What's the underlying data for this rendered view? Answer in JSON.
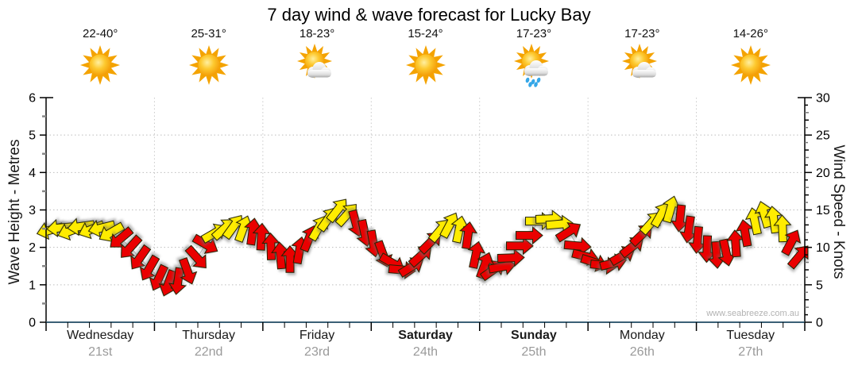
{
  "title": "7 day wind & wave forecast for Lucky Bay",
  "watermark": "www.seabreeze.com.au",
  "left_axis": {
    "label": "Wave Height - Metres",
    "ticks": [
      0,
      1,
      2,
      3,
      4,
      5,
      6
    ],
    "range": [
      0,
      6
    ]
  },
  "right_axis": {
    "label": "Wind Speed - Knots",
    "ticks": [
      0,
      5,
      10,
      15,
      20,
      25,
      30
    ],
    "range": [
      0,
      30
    ]
  },
  "days": [
    {
      "name": "Wednesday",
      "date": "21st",
      "temp": "22-40°",
      "icon": "sunny",
      "bold": false
    },
    {
      "name": "Thursday",
      "date": "22nd",
      "temp": "25-31°",
      "icon": "sunny",
      "bold": false
    },
    {
      "name": "Friday",
      "date": "23rd",
      "temp": "18-23°",
      "icon": "partly-cloudy",
      "bold": false
    },
    {
      "name": "Saturday",
      "date": "24th",
      "temp": "15-24°",
      "icon": "sunny",
      "bold": true
    },
    {
      "name": "Sunday",
      "date": "25th",
      "temp": "17-23°",
      "icon": "showers",
      "bold": true
    },
    {
      "name": "Monday",
      "date": "26th",
      "temp": "17-23°",
      "icon": "partly-cloudy",
      "bold": false
    },
    {
      "name": "Tuesday",
      "date": "27th",
      "temp": "14-26°",
      "icon": "sunny",
      "bold": false
    }
  ],
  "chart_data": {
    "type": "wind-arrow-time-series",
    "title": "7 day wind & wave forecast for Lucky Bay",
    "x_categories": [
      "Wednesday 21st",
      "Thursday 22nd",
      "Friday 23rd",
      "Saturday 24th",
      "Sunday 25th",
      "Monday 26th",
      "Tuesday 27th"
    ],
    "y_left": {
      "label": "Wave Height - Metres",
      "range": [
        0,
        6
      ],
      "grid": "dotted"
    },
    "y_right": {
      "label": "Wind Speed - Knots",
      "range": [
        0,
        30
      ],
      "grid": "dotted"
    },
    "arrow_colors": {
      "y": "#ffec00",
      "r": "#ea0000"
    },
    "direction_convention": "degrees clockwise from up/North; arrow points where wind blows toward",
    "arrows_format": [
      "x_px",
      "knots",
      "dir_deg",
      "color_key"
    ],
    "arrows": [
      [
        63,
        12.3,
        255,
        "y"
      ],
      [
        76,
        12.6,
        265,
        "y"
      ],
      [
        89,
        12.2,
        250,
        "y"
      ],
      [
        102,
        12.8,
        262,
        "y"
      ],
      [
        115,
        12.4,
        248,
        "y"
      ],
      [
        128,
        12.6,
        256,
        "y"
      ],
      [
        140,
        12.0,
        240,
        "y"
      ],
      [
        152,
        11.2,
        230,
        "r"
      ],
      [
        164,
        10.0,
        222,
        "r"
      ],
      [
        176,
        8.6,
        215,
        "r"
      ],
      [
        188,
        7.2,
        210,
        "r"
      ],
      [
        200,
        5.9,
        205,
        "r"
      ],
      [
        212,
        5.2,
        200,
        "r"
      ],
      [
        224,
        5.5,
        188,
        "r"
      ],
      [
        236,
        6.8,
        160,
        "r"
      ],
      [
        248,
        8.6,
        138,
        "r"
      ],
      [
        259,
        10.4,
        120,
        "r"
      ],
      [
        270,
        11.9,
        60,
        "y"
      ],
      [
        282,
        12.5,
        48,
        "y"
      ],
      [
        294,
        12.8,
        36,
        "y"
      ],
      [
        306,
        12.5,
        20,
        "y"
      ],
      [
        318,
        12.1,
        8,
        "r"
      ],
      [
        329,
        11.4,
        3,
        "r"
      ],
      [
        341,
        10.1,
        358,
        "r"
      ],
      [
        353,
        8.9,
        355,
        "r"
      ],
      [
        365,
        8.4,
        0,
        "r"
      ],
      [
        377,
        9.6,
        10,
        "r"
      ],
      [
        389,
        11.2,
        22,
        "r"
      ],
      [
        401,
        12.6,
        30,
        "y"
      ],
      [
        413,
        13.8,
        35,
        "y"
      ],
      [
        425,
        15.0,
        38,
        "y"
      ],
      [
        437,
        14.4,
        42,
        "y"
      ],
      [
        448,
        13.2,
        165,
        "r"
      ],
      [
        459,
        11.9,
        168,
        "r"
      ],
      [
        470,
        10.5,
        170,
        "r"
      ],
      [
        482,
        9.1,
        160,
        "r"
      ],
      [
        494,
        7.9,
        120,
        "r"
      ],
      [
        506,
        7.0,
        95,
        "r"
      ],
      [
        518,
        7.4,
        58,
        "r"
      ],
      [
        530,
        8.9,
        48,
        "r"
      ],
      [
        542,
        10.7,
        45,
        "r"
      ],
      [
        554,
        12.3,
        40,
        "y"
      ],
      [
        566,
        13.0,
        28,
        "y"
      ],
      [
        578,
        12.4,
        12,
        "y"
      ],
      [
        589,
        11.6,
        8,
        "r"
      ],
      [
        599,
        9.0,
        12,
        "r"
      ],
      [
        610,
        7.6,
        20,
        "r"
      ],
      [
        621,
        7.0,
        55,
        "r"
      ],
      [
        632,
        7.4,
        80,
        "r"
      ],
      [
        643,
        8.6,
        88,
        "r"
      ],
      [
        654,
        10.2,
        90,
        "r"
      ],
      [
        666,
        11.6,
        90,
        "r"
      ],
      [
        678,
        13.5,
        90,
        "y"
      ],
      [
        691,
        13.8,
        88,
        "y"
      ],
      [
        704,
        13.1,
        85,
        "y"
      ],
      [
        716,
        12.1,
        58,
        "r"
      ],
      [
        727,
        10.2,
        95,
        "r"
      ],
      [
        737,
        8.8,
        104,
        "r"
      ],
      [
        748,
        8.0,
        108,
        "r"
      ],
      [
        760,
        7.6,
        96,
        "r"
      ],
      [
        772,
        7.9,
        76,
        "r"
      ],
      [
        784,
        8.9,
        60,
        "r"
      ],
      [
        796,
        10.1,
        52,
        "r"
      ],
      [
        808,
        11.7,
        46,
        "r"
      ],
      [
        820,
        13.3,
        42,
        "y"
      ],
      [
        832,
        14.4,
        30,
        "y"
      ],
      [
        844,
        15.1,
        16,
        "y"
      ],
      [
        856,
        13.9,
        186,
        "r"
      ],
      [
        867,
        12.4,
        188,
        "r"
      ],
      [
        878,
        11.0,
        185,
        "r"
      ],
      [
        890,
        9.8,
        182,
        "r"
      ],
      [
        902,
        9.0,
        176,
        "r"
      ],
      [
        914,
        9.3,
        168,
        "r"
      ],
      [
        926,
        10.5,
        356,
        "r"
      ],
      [
        938,
        11.9,
        350,
        "r"
      ],
      [
        950,
        13.5,
        348,
        "y"
      ],
      [
        962,
        14.4,
        344,
        "y"
      ],
      [
        974,
        13.7,
        352,
        "y"
      ],
      [
        985,
        12.5,
        358,
        "y"
      ],
      [
        996,
        10.7,
        28,
        "r"
      ],
      [
        1006,
        8.8,
        40,
        "r"
      ]
    ]
  }
}
